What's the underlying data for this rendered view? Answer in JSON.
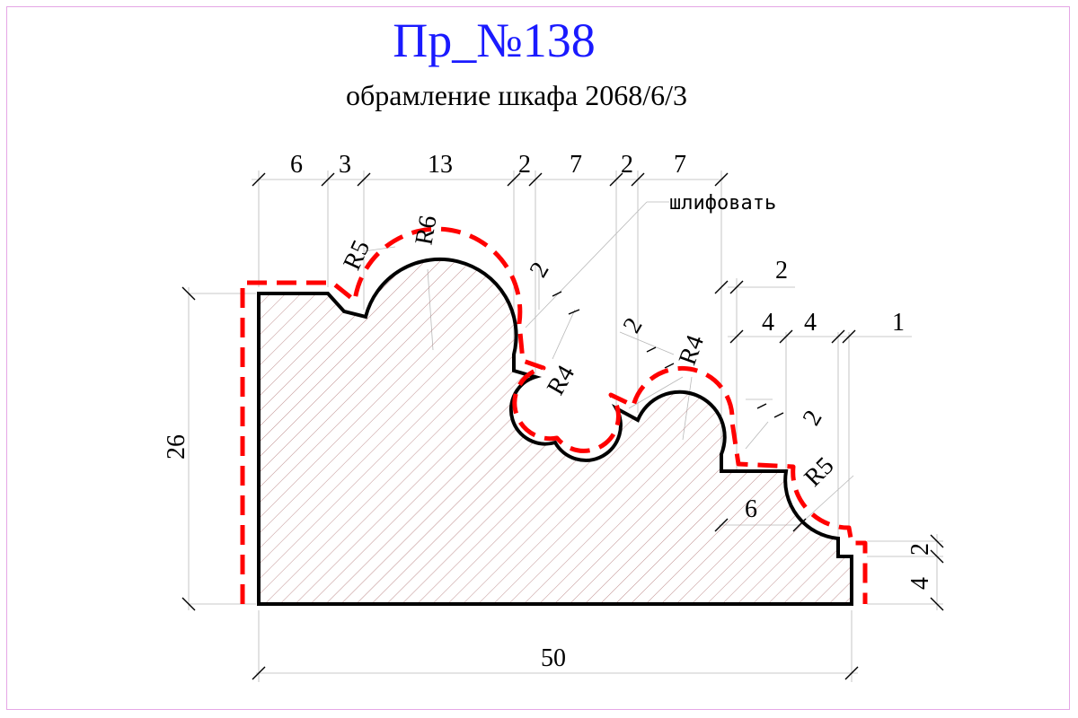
{
  "title": "Пр_№138",
  "subtitle": "обрамление шкафа 2068/6/3",
  "annotation": "шлифовать",
  "colors": {
    "title": "#1a1aff",
    "profile": "#000000",
    "offset": "#ff0000",
    "hatch": "#c09090",
    "border": "#e5a6e5"
  },
  "dims": {
    "top": [
      "6",
      "3",
      "13",
      "2",
      "7",
      "2",
      "7"
    ],
    "right_upper": "2",
    "right_mid": [
      "4",
      "4",
      "1"
    ],
    "width": "50",
    "height": "26",
    "right_bottom": [
      "2",
      "4"
    ],
    "step": "6",
    "diag": [
      "2",
      "2",
      "2"
    ],
    "radii": [
      "R5",
      "R6",
      "R4",
      "R4",
      "R5"
    ]
  }
}
